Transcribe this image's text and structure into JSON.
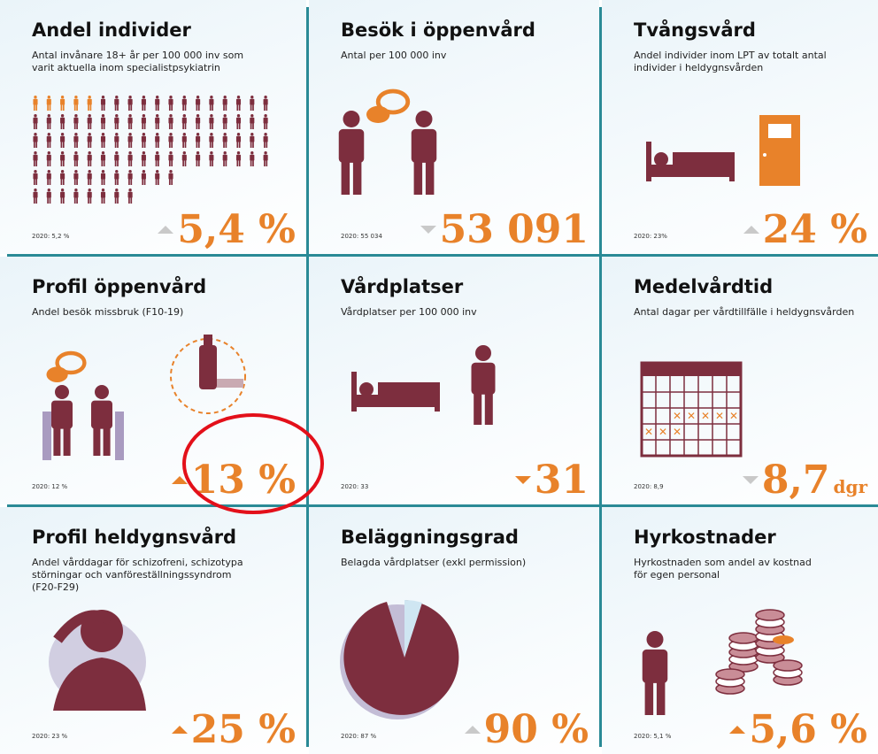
{
  "panels": [
    {
      "title": "Andel individer",
      "subtitle": [
        "Antal invånare 18+ år per 100 000 inv som",
        "varit aktuella inom specialistpsykiatrin"
      ],
      "previous": "2020: 5,2 %",
      "value": "5,4 %",
      "trend": "up",
      "trend_color": "#c9c9c9"
    },
    {
      "title": "Besök i öppenvård",
      "subtitle": [
        "Antal per 100 000 inv"
      ],
      "previous": "2020: 55 034",
      "value": "53 091",
      "trend": "down",
      "trend_color": "#c9c9c9"
    },
    {
      "title": "Tvångsvård",
      "subtitle": [
        "Andel individer inom LPT av totalt antal",
        "individer i heldygnsvården"
      ],
      "previous": "2020: 23%",
      "value": "24 %",
      "trend": "up",
      "trend_color": "#c9c9c9"
    },
    {
      "title": "Profil öppenvård",
      "subtitle": [
        "Andel besök missbruk (F10-19)"
      ],
      "previous": "2020: 12 %",
      "value": "13 %",
      "trend": "up",
      "trend_color": "#e8822a"
    },
    {
      "title": "Vårdplatser",
      "subtitle": [
        "Vårdplatser per 100 000 inv"
      ],
      "previous": "2020: 33",
      "value": "31",
      "trend": "down",
      "trend_color": "#e8822a"
    },
    {
      "title": "Medelvårdtid",
      "subtitle": [
        "Antal dagar per vårdtillfälle i heldygnsvården"
      ],
      "previous": "2020: 8,9",
      "value": "8,7",
      "unit": "dgr",
      "trend": "down",
      "trend_color": "#c9c9c9"
    },
    {
      "title": "Profil heldygnsvård",
      "subtitle": [
        "Andel vårddagar för schizofreni, schizotypa",
        "störningar och vanföreställningssyndrom",
        "(F20-F29)"
      ],
      "previous": "2020: 23 %",
      "value": "25 %",
      "trend": "up",
      "trend_color": "#e8822a"
    },
    {
      "title": "Beläggningsgrad",
      "subtitle": [
        "Belagda vårdplatser (exkl permission)"
      ],
      "previous": "2020: 87 %",
      "value": "90 %",
      "trend": "up",
      "trend_color": "#c9c9c9"
    },
    {
      "title": "Hyrkostnader",
      "subtitle": [
        "Hyrkostnaden som andel av kostnad",
        "för egen personal"
      ],
      "previous": "2020: 5,1 %",
      "value": "5,6 %",
      "trend": "up",
      "trend_color": "#e8822a"
    }
  ]
}
